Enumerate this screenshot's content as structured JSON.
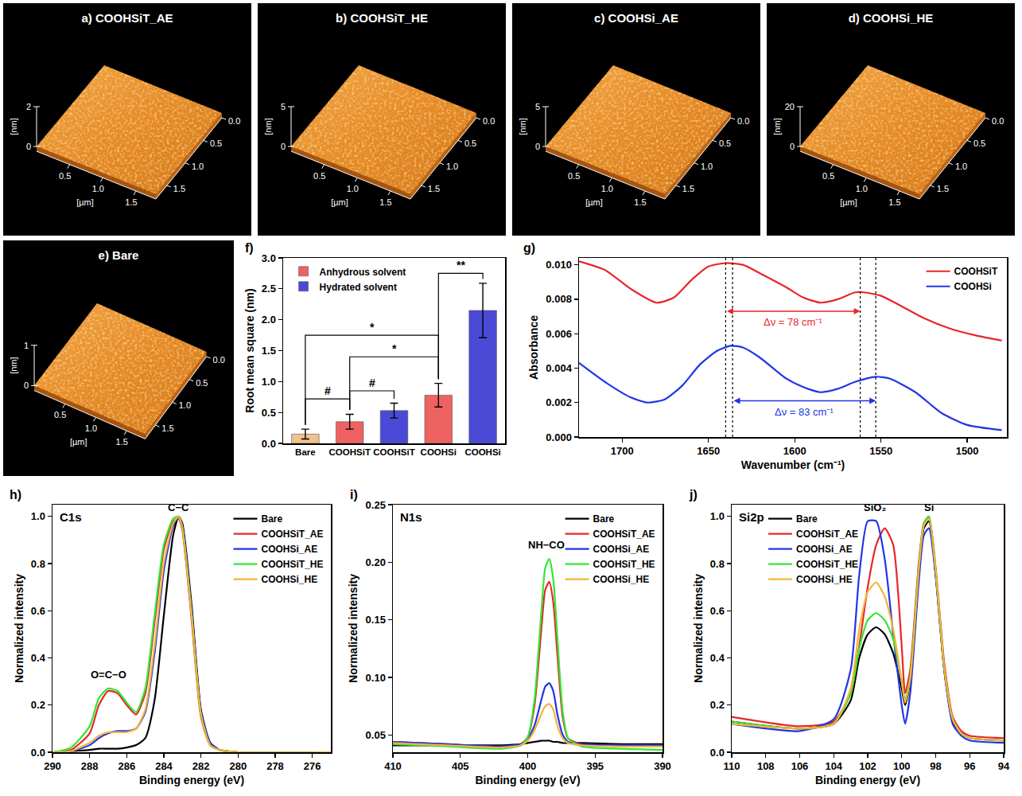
{
  "afm_axes": {
    "xy_label": "[µm]",
    "xy_range": [
      0,
      1.8
    ],
    "x_ticks": [
      0.5,
      {
        "value": 1,
        "label": "1.0"
      },
      1.5
    ],
    "y_ticks": [
      {
        "value": 0,
        "label": "0.0"
      },
      0.5,
      {
        "value": 1,
        "label": "1.0"
      },
      1.5
    ]
  },
  "afm_images": [
    {
      "title": "a) COOHSiT_AE",
      "z_label": "[nm]",
      "zlim": [
        0,
        2
      ],
      "zticks": [
        0,
        2
      ]
    },
    {
      "title": "b) COOHSiT_HE",
      "z_label": "[nm]",
      "zlim": [
        0,
        5
      ],
      "zticks": [
        0,
        5
      ]
    },
    {
      "title": "c) COOHSi_AE",
      "z_label": "[nm]",
      "zlim": [
        0,
        5
      ],
      "zticks": [
        0,
        5
      ]
    },
    {
      "title": "d) COOHSi_HE",
      "z_label": "[nm]",
      "zlim": [
        0,
        20
      ],
      "zticks": [
        0,
        20
      ]
    },
    {
      "title": "e) Bare",
      "z_label": "[nm]",
      "zlim": [
        0,
        1
      ],
      "zticks": [
        0,
        1
      ]
    }
  ],
  "chart_data": [
    {
      "panel": "f)",
      "type": "bar",
      "categories": [
        "Bare",
        "COOHSiT",
        "COOHSiT",
        "COOHSi",
        "COOHSi"
      ],
      "values": [
        0.15,
        0.35,
        0.53,
        0.78,
        2.15
      ],
      "errors": [
        0.08,
        0.12,
        0.12,
        0.19,
        0.44
      ],
      "colors": [
        "#f2c18d",
        "#ef6262",
        "#4a4ad6",
        "#ef6262",
        "#4a4ad6"
      ],
      "legend_group": [
        null,
        "Anhydrous solvent",
        "Hydrated solvent",
        "Anhydrous solvent",
        "Hydrated solvent"
      ],
      "y_label": "Root mean square (nm)",
      "ylim": [
        0,
        3
      ],
      "yticks": [
        {
          "value": 0,
          "label": "0.0"
        },
        0.5,
        {
          "value": 1,
          "label": "1.0"
        },
        1.5,
        {
          "value": 2,
          "label": "2.0"
        },
        2.5,
        {
          "value": 3,
          "label": "3.0"
        }
      ],
      "legend": "upper left",
      "grid": false,
      "significance": [
        {
          "from": 0,
          "to": 3,
          "y": 1.75,
          "label": "*"
        },
        {
          "from": 1,
          "to": 3,
          "y": 1.4,
          "label": "*"
        },
        {
          "from": 0,
          "to": 1,
          "y": 0.72,
          "label": "#"
        },
        {
          "from": 1,
          "to": 2,
          "y": 0.85,
          "label": "#"
        },
        {
          "from": 3,
          "to": 4,
          "y": 2.75,
          "label": "**"
        }
      ]
    },
    {
      "panel": "g)",
      "type": "line",
      "x_label": "Wavenumber (cm⁻¹)",
      "y_label": "Absorbance",
      "xlim": [
        1725,
        1477
      ],
      "xticks": [
        1700,
        1650,
        1600,
        1550,
        1500
      ],
      "ylim": [
        0,
        0.0104
      ],
      "yticks": [
        {
          "value": 0,
          "label": "0.000"
        },
        {
          "value": 0.002,
          "label": "0.002"
        },
        {
          "value": 0.004,
          "label": "0.004"
        },
        {
          "value": 0.006,
          "label": "0.006"
        },
        {
          "value": 0.008,
          "label": "0.008"
        },
        {
          "value": 0.01,
          "label": "0.010"
        }
      ],
      "legend": "upper right",
      "grid": false,
      "series": [
        {
          "name": "COOHSiT",
          "color": "#e8262a",
          "x": [
            1725,
            1710,
            1695,
            1680,
            1670,
            1660,
            1650,
            1640,
            1630,
            1620,
            1605,
            1595,
            1585,
            1575,
            1565,
            1560,
            1550,
            1540,
            1525,
            1510,
            1495,
            1480
          ],
          "values": [
            0.0102,
            0.0097,
            0.0086,
            0.0078,
            0.0081,
            0.0091,
            0.0099,
            0.0101,
            0.01,
            0.0095,
            0.0087,
            0.0081,
            0.0078,
            0.008,
            0.0084,
            0.0084,
            0.0082,
            0.0077,
            0.0069,
            0.0063,
            0.0059,
            0.0056
          ]
        },
        {
          "name": "COOHSi",
          "color": "#2035e6",
          "x": [
            1725,
            1710,
            1695,
            1685,
            1675,
            1665,
            1655,
            1645,
            1637,
            1630,
            1620,
            1605,
            1595,
            1585,
            1575,
            1565,
            1553,
            1545,
            1530,
            1515,
            1500,
            1480
          ],
          "values": [
            0.0043,
            0.0032,
            0.0023,
            0.002,
            0.0022,
            0.003,
            0.0042,
            0.005,
            0.0053,
            0.0052,
            0.0046,
            0.0034,
            0.0029,
            0.0026,
            0.0028,
            0.0032,
            0.0035,
            0.0034,
            0.0026,
            0.0014,
            0.0007,
            0.0004
          ]
        }
      ],
      "shifts": [
        {
          "from": 1640,
          "to": 1562,
          "y": 0.0073,
          "label": "Δν = 78 cm⁻¹",
          "color": "#e8262a"
        },
        {
          "from": 1636,
          "to": 1553,
          "y": 0.0021,
          "label": "Δν = 83 cm⁻¹",
          "color": "#2035e6"
        }
      ]
    },
    {
      "panel": "h)",
      "label": "C1s",
      "type": "line",
      "x_label": "Binding energy (eV)",
      "y_label": "Normalized intensity",
      "xlim": [
        290,
        275
      ],
      "xticks": [
        290,
        288,
        286,
        284,
        282,
        280,
        278,
        276
      ],
      "ylim": [
        0,
        1.05
      ],
      "yticks": [
        {
          "value": 0,
          "label": "0.0"
        },
        0.2,
        0.4,
        0.6,
        0.8,
        {
          "value": 1,
          "label": "1.0"
        }
      ],
      "legend": "upper right",
      "grid": false,
      "x": [
        290,
        289,
        288,
        287.5,
        287,
        286.5,
        286,
        285.5,
        285,
        284.5,
        284,
        283.5,
        283.2,
        283,
        282.5,
        282,
        281.5,
        281,
        280,
        275
      ],
      "series": [
        {
          "name": "Bare",
          "color": "#000000",
          "values": [
            0,
            0.005,
            0.01,
            0.015,
            0.015,
            0.015,
            0.02,
            0.03,
            0.06,
            0.22,
            0.58,
            0.92,
            1.0,
            0.97,
            0.62,
            0.18,
            0.04,
            0.01,
            0,
            0
          ]
        },
        {
          "name": "COOHSiT_AE",
          "color": "#e8262a",
          "values": [
            0,
            0.01,
            0.08,
            0.2,
            0.26,
            0.25,
            0.2,
            0.16,
            0.25,
            0.55,
            0.86,
            0.98,
            0.99,
            0.94,
            0.56,
            0.15,
            0.03,
            0.01,
            0,
            0
          ]
        },
        {
          "name": "COOHSi_AE",
          "color": "#2035e6",
          "values": [
            0,
            0.005,
            0.03,
            0.06,
            0.08,
            0.09,
            0.09,
            0.1,
            0.17,
            0.42,
            0.77,
            0.96,
            1.0,
            0.96,
            0.6,
            0.17,
            0.04,
            0.01,
            0,
            0
          ]
        },
        {
          "name": "COOHSiT_HE",
          "color": "#33e633",
          "values": [
            0,
            0.02,
            0.11,
            0.23,
            0.27,
            0.26,
            0.21,
            0.17,
            0.27,
            0.58,
            0.88,
            0.99,
            1.0,
            0.95,
            0.58,
            0.16,
            0.03,
            0.01,
            0,
            0
          ]
        },
        {
          "name": "COOHSi_HE",
          "color": "#f5b335",
          "values": [
            0,
            0.005,
            0.04,
            0.07,
            0.085,
            0.085,
            0.085,
            0.1,
            0.18,
            0.45,
            0.8,
            0.97,
            1.0,
            0.95,
            0.58,
            0.16,
            0.03,
            0.01,
            0,
            0
          ]
        }
      ],
      "annotations": [
        {
          "text": "O=C−O",
          "x": 287,
          "y": 0.29
        },
        {
          "text": "C−C",
          "x": 283.2,
          "y": 1.0
        }
      ]
    },
    {
      "panel": "i)",
      "label": "N1s",
      "type": "line",
      "x_label": "Binding energy (eV)",
      "y_label": "Normalized intensity",
      "xlim": [
        410,
        390
      ],
      "xticks": [
        410,
        405,
        400,
        395,
        390
      ],
      "ylim": [
        0.035,
        0.25
      ],
      "yticks": [
        0.05,
        {
          "value": 0.1,
          "label": "0.10"
        },
        0.15,
        {
          "value": 0.2,
          "label": "0.20"
        },
        0.25
      ],
      "legend": "upper right",
      "grid": false,
      "x": [
        410,
        406,
        402,
        400.5,
        400,
        399.5,
        399,
        398.7,
        398.4,
        398.1,
        397.8,
        397.4,
        397,
        396,
        393,
        390
      ],
      "series": [
        {
          "name": "Bare",
          "color": "#000000",
          "values": [
            0.041,
            0.041,
            0.041,
            0.042,
            0.043,
            0.044,
            0.045,
            0.045,
            0.045,
            0.044,
            0.044,
            0.043,
            0.043,
            0.043,
            0.042,
            0.042
          ]
        },
        {
          "name": "COOHSiT_AE",
          "color": "#e8262a",
          "values": [
            0.044,
            0.042,
            0.04,
            0.042,
            0.048,
            0.075,
            0.14,
            0.176,
            0.183,
            0.165,
            0.12,
            0.065,
            0.047,
            0.042,
            0.041,
            0.041
          ]
        },
        {
          "name": "COOHSi_AE",
          "color": "#2035e6",
          "values": [
            0.044,
            0.042,
            0.04,
            0.042,
            0.046,
            0.058,
            0.08,
            0.092,
            0.095,
            0.088,
            0.068,
            0.05,
            0.044,
            0.042,
            0.041,
            0.041
          ]
        },
        {
          "name": "COOHSiT_HE",
          "color": "#33e633",
          "values": [
            0.042,
            0.04,
            0.038,
            0.041,
            0.048,
            0.08,
            0.155,
            0.195,
            0.203,
            0.185,
            0.135,
            0.07,
            0.047,
            0.04,
            0.038,
            0.037
          ]
        },
        {
          "name": "COOHSi_HE",
          "color": "#f5b335",
          "values": [
            0.043,
            0.041,
            0.039,
            0.041,
            0.045,
            0.054,
            0.068,
            0.075,
            0.077,
            0.072,
            0.058,
            0.047,
            0.043,
            0.041,
            0.04,
            0.04
          ]
        }
      ],
      "annotations": [
        {
          "text": "NH−CO",
          "x": 398.6,
          "y": 0.207
        }
      ]
    },
    {
      "panel": "j)",
      "label": "Si2p",
      "type": "line",
      "x_label": "Binding energy (eV)",
      "y_label": "Normalized intensity",
      "xlim": [
        110,
        94
      ],
      "xticks": [
        110,
        108,
        106,
        104,
        102,
        100,
        98,
        96,
        94
      ],
      "ylim": [
        0,
        1.05
      ],
      "yticks": [
        {
          "value": 0,
          "label": "0.0"
        },
        0.2,
        0.4,
        0.6,
        0.8,
        {
          "value": 1,
          "label": "1.0"
        }
      ],
      "legend": "upper left",
      "grid": false,
      "x": [
        110,
        106,
        104,
        103,
        102.5,
        102,
        101.5,
        101,
        100.5,
        100,
        99.8,
        99.5,
        99,
        98.7,
        98.4,
        98,
        97.5,
        97,
        96.5,
        96,
        94
      ],
      "series": [
        {
          "name": "Bare",
          "color": "#000000",
          "values": [
            0.13,
            0.1,
            0.12,
            0.22,
            0.4,
            0.5,
            0.53,
            0.5,
            0.42,
            0.27,
            0.2,
            0.3,
            0.75,
            0.95,
            0.98,
            0.75,
            0.35,
            0.13,
            0.08,
            0.06,
            0.05
          ]
        },
        {
          "name": "COOHSiT_AE",
          "color": "#e8262a",
          "values": [
            0.15,
            0.11,
            0.13,
            0.25,
            0.45,
            0.7,
            0.88,
            0.95,
            0.88,
            0.45,
            0.25,
            0.35,
            0.8,
            0.97,
            1.0,
            0.78,
            0.38,
            0.15,
            0.09,
            0.07,
            0.06
          ]
        },
        {
          "name": "COOHSi_AE",
          "color": "#2035e6",
          "values": [
            0.12,
            0.09,
            0.14,
            0.35,
            0.75,
            0.98,
            0.98,
            0.82,
            0.5,
            0.2,
            0.12,
            0.25,
            0.72,
            0.92,
            0.95,
            0.75,
            0.35,
            0.12,
            0.07,
            0.05,
            0.04
          ]
        },
        {
          "name": "COOHSiT_HE",
          "color": "#33e633",
          "values": [
            0.13,
            0.1,
            0.12,
            0.25,
            0.44,
            0.56,
            0.59,
            0.56,
            0.48,
            0.3,
            0.22,
            0.32,
            0.78,
            0.97,
            1.0,
            0.77,
            0.36,
            0.14,
            0.08,
            0.06,
            0.05
          ]
        },
        {
          "name": "COOHSi_HE",
          "color": "#f5b335",
          "values": [
            0.12,
            0.1,
            0.12,
            0.27,
            0.52,
            0.68,
            0.72,
            0.66,
            0.52,
            0.3,
            0.21,
            0.31,
            0.77,
            0.96,
            0.99,
            0.77,
            0.36,
            0.14,
            0.08,
            0.06,
            0.05
          ]
        }
      ],
      "annotations": [
        {
          "text": "SiO₂",
          "x": 101.6,
          "y": 1.0
        },
        {
          "text": "Si",
          "x": 98.4,
          "y": 1.0
        }
      ]
    }
  ]
}
